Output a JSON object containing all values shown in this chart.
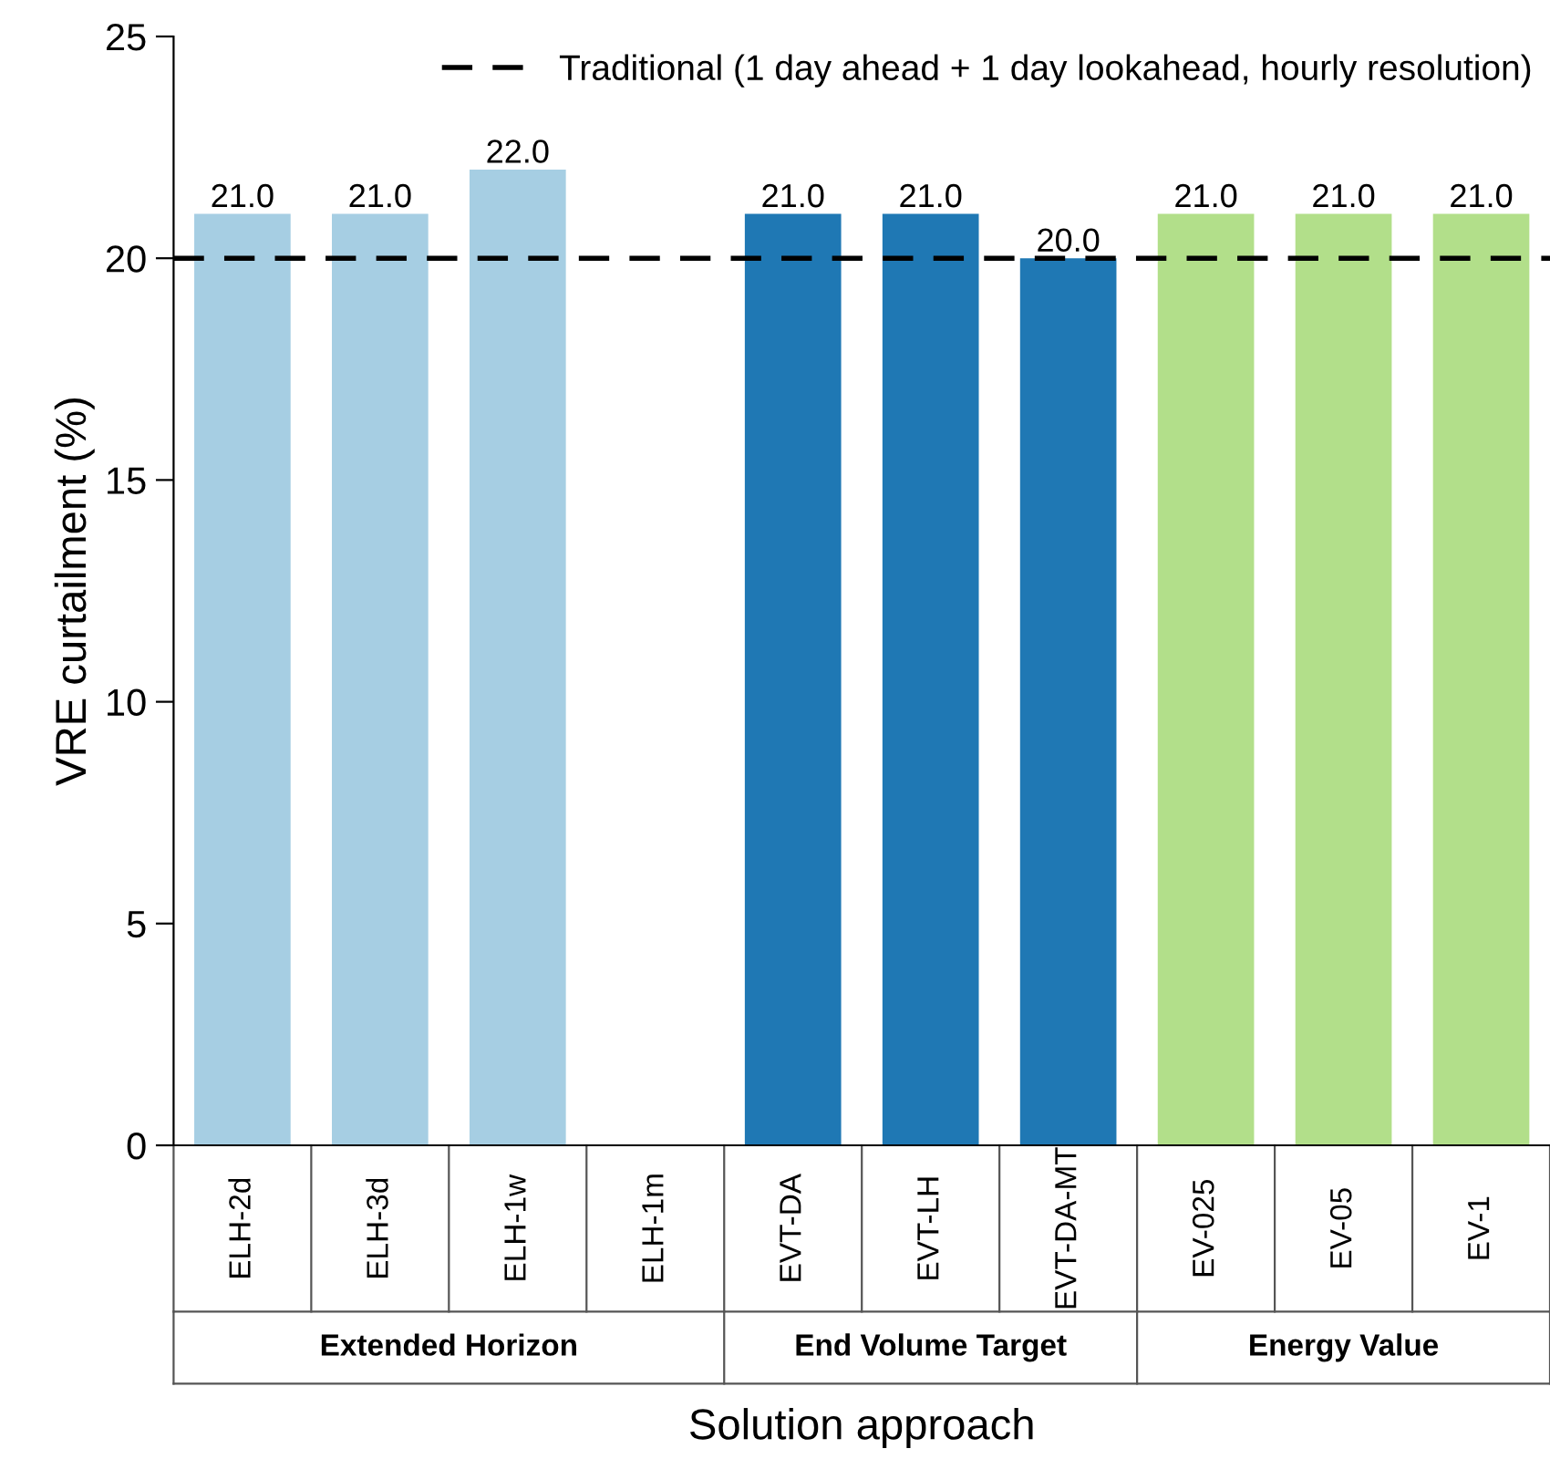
{
  "chart_data": {
    "type": "bar",
    "categories": [
      "ELH-2d",
      "ELH-3d",
      "ELH-1w",
      "ELH-1m",
      "EVT-DA",
      "EVT-LH",
      "EVT-DA-MT",
      "EV-025",
      "EV-05",
      "EV-1"
    ],
    "values": [
      21.0,
      21.0,
      22.0,
      null,
      21.0,
      21.0,
      20.0,
      21.0,
      21.0,
      21.0
    ],
    "colors": [
      "#a6cee3",
      "#a6cee3",
      "#a6cee3",
      "#a6cee3",
      "#1f78b4",
      "#1f78b4",
      "#1f78b4",
      "#b2df8a",
      "#b2df8a",
      "#b2df8a"
    ],
    "value_labels": [
      "21.0",
      "21.0",
      "22.0",
      null,
      "21.0",
      "21.0",
      "20.0",
      "21.0",
      "21.0",
      "21.0"
    ],
    "xlabel": "Solution approach",
    "ylabel": "VRE curtailment (%)",
    "ylim": [
      0,
      25
    ],
    "yticks": [
      0,
      5,
      10,
      15,
      20,
      25
    ],
    "ref_lines": [
      {
        "axis": "y",
        "value": 20,
        "label": "Traditional (1 day ahead + 1 day lookahead, hourly resolution)",
        "color": "#000000",
        "line_style": "dashed"
      }
    ],
    "annotations": [
      "Extended Horizon",
      "End Volume Target",
      "Energy Value"
    ],
    "legend": "top right",
    "grid": false
  }
}
